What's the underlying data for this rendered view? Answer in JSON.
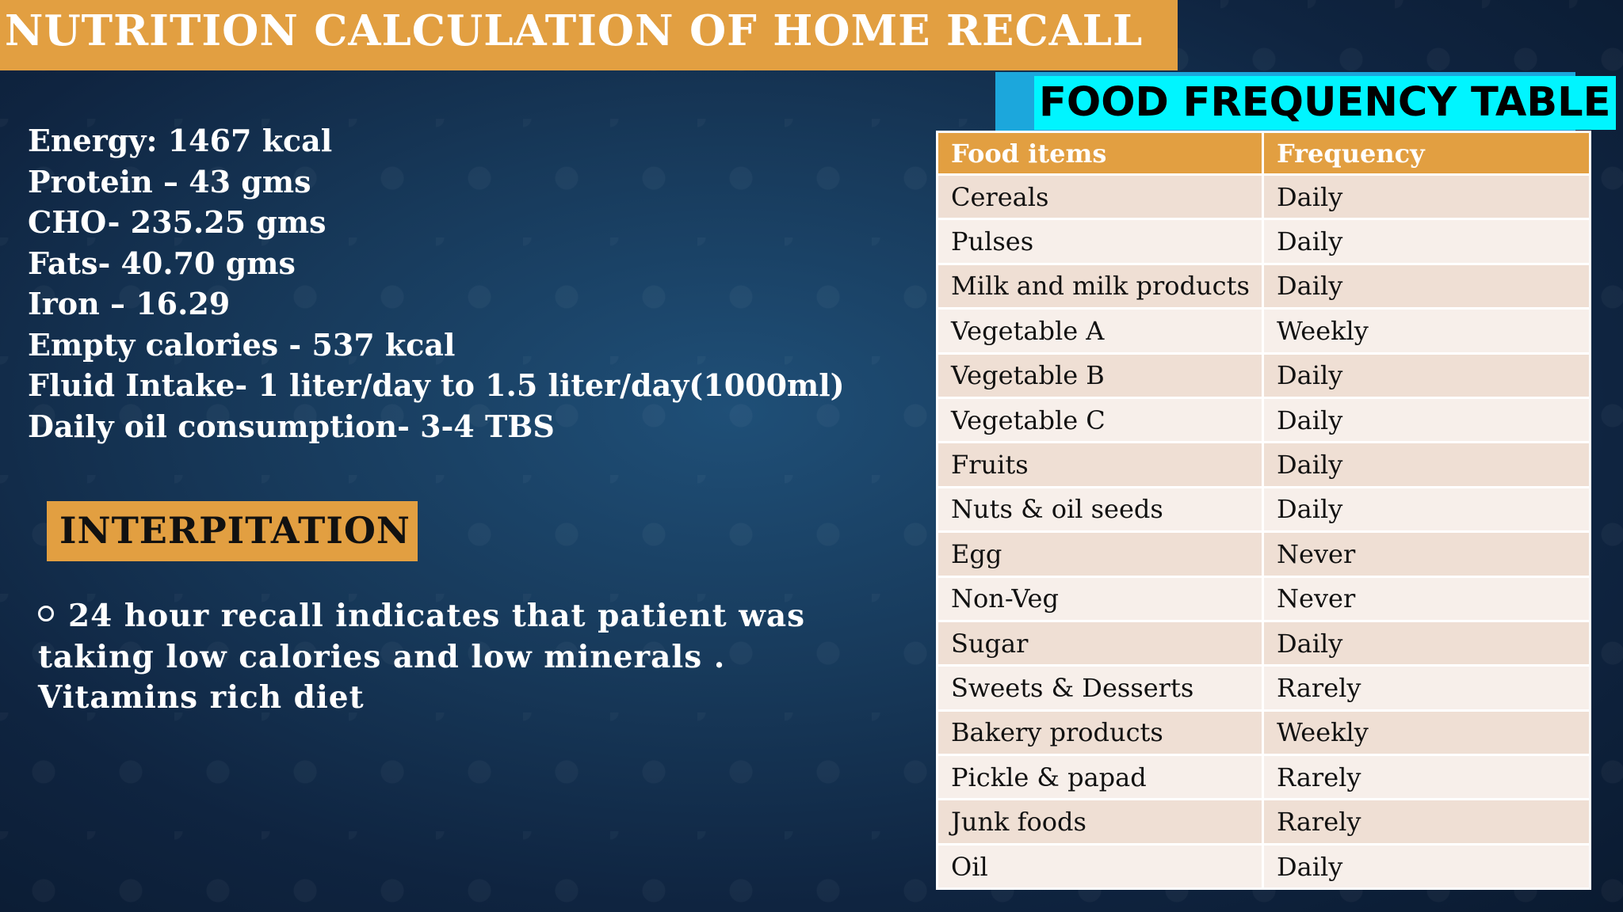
{
  "title": "NUTRITION CALCULATION OF HOME RECALL",
  "nutrition_summary": [
    "Energy: 1467 kcal",
    "Protein – 43 gms",
    "CHO-  235.25 gms",
    "Fats- 40.70 gms",
    "Iron – 16.29",
    "Empty calories - 537 kcal",
    "Fluid Intake- 1 liter/day to 1.5 liter/day(1000ml)",
    "Daily oil consumption- 3-4 TBS"
  ],
  "interpretation": {
    "heading": "INTERPITATION",
    "text": "24 hour recall indicates that patient was taking low calories and low minerals . Vitamins rich diet"
  },
  "food_frequency_table": {
    "title": "FOOD FREQUENCY TABLE",
    "columns": [
      "Food items",
      "Frequency"
    ],
    "rows": [
      [
        "Cereals",
        "Daily"
      ],
      [
        "Pulses",
        "Daily"
      ],
      [
        "Milk and milk products",
        "Daily"
      ],
      [
        "Vegetable A",
        "Weekly"
      ],
      [
        "Vegetable B",
        "Daily"
      ],
      [
        "Vegetable C",
        "Daily"
      ],
      [
        "Fruits",
        "Daily"
      ],
      [
        "Nuts & oil seeds",
        "Daily"
      ],
      [
        "Egg",
        "Never"
      ],
      [
        "Non-Veg",
        "Never"
      ],
      [
        "Sugar",
        "Daily"
      ],
      [
        "Sweets & Desserts",
        "Rarely"
      ],
      [
        "Bakery products",
        "Weekly"
      ],
      [
        "Pickle & papad",
        "Rarely"
      ],
      [
        "Junk foods",
        "Rarely"
      ],
      [
        "Oil",
        "Daily"
      ]
    ]
  },
  "colors": {
    "accent_orange": "#e29f41",
    "title_cyan": "#00f5ff",
    "title_blue": "#1ca7dc",
    "background_blue": "#17395a"
  }
}
